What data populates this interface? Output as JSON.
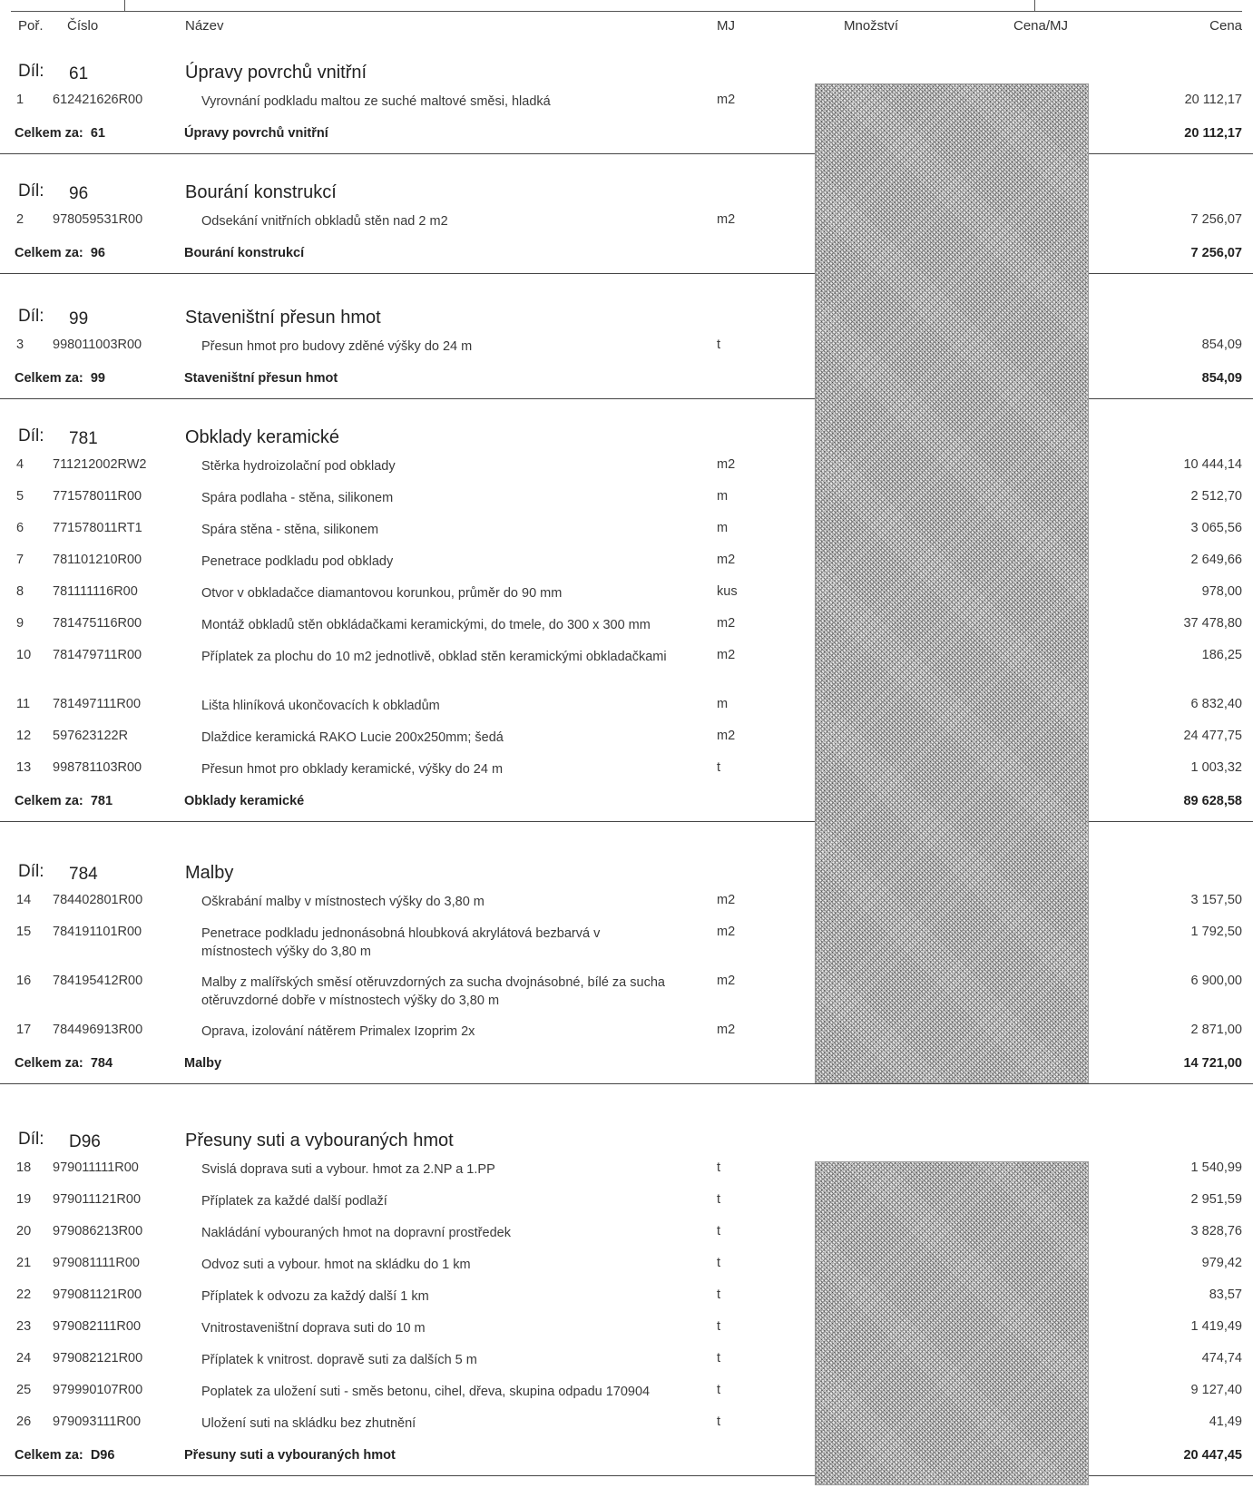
{
  "header": {
    "por": "Poř.",
    "cislo": "Číslo",
    "nazev": "Název",
    "mj": "MJ",
    "mnozstvi": "Množství",
    "cena_mj": "Cena/MJ",
    "cena": "Cena"
  },
  "dil_label": "Díl:",
  "total_label": "Celkem za:",
  "sections": [
    {
      "num": "61",
      "name": "Úpravy povrchů vnitřní",
      "total_name": "Úpravy povrchů vnitřní",
      "total": "20 112,17",
      "rows": [
        {
          "por": "1",
          "cislo": "612421626R00",
          "nazev": "Vyrovnání podkladu maltou ze suché maltové směsi, hladká",
          "mj": "m2",
          "cena": "20 112,17"
        }
      ]
    },
    {
      "num": "96",
      "name": "Bourání konstrukcí",
      "total_name": "Bourání konstrukcí",
      "total": "7 256,07",
      "rows": [
        {
          "por": "2",
          "cislo": "978059531R00",
          "nazev": "Odsekání vnitřních obkladů stěn nad 2 m2",
          "mj": "m2",
          "cena": "7 256,07"
        }
      ]
    },
    {
      "num": "99",
      "name": "Staveništní přesun hmot",
      "total_name": "Staveništní přesun hmot",
      "total": "854,09",
      "rows": [
        {
          "por": "3",
          "cislo": "998011003R00",
          "nazev": "Přesun hmot pro budovy zděné výšky do 24 m",
          "mj": "t",
          "cena": "854,09"
        }
      ]
    },
    {
      "num": "781",
      "name": "Obklady keramické",
      "total_name": "Obklady keramické",
      "total": "89 628,58",
      "rows": [
        {
          "por": "4",
          "cislo": "711212002RW2",
          "nazev": "Stěrka hydroizolační pod obklady",
          "mj": "m2",
          "cena": "10 444,14"
        },
        {
          "por": "5",
          "cislo": "771578011R00",
          "nazev": "Spára podlaha - stěna, silikonem",
          "mj": "m",
          "cena": "2 512,70"
        },
        {
          "por": "6",
          "cislo": "771578011RT1",
          "nazev": "Spára stěna - stěna, silikonem",
          "mj": "m",
          "cena": "3 065,56"
        },
        {
          "por": "7",
          "cislo": "781101210R00",
          "nazev": "Penetrace podkladu pod obklady",
          "mj": "m2",
          "cena": "2 649,66"
        },
        {
          "por": "8",
          "cislo": "781111116R00",
          "nazev": "Otvor v obkladačce diamantovou korunkou, průměr do 90 mm",
          "mj": "kus",
          "cena": "978,00"
        },
        {
          "por": "9",
          "cislo": "781475116R00",
          "nazev": "Montáž obkladů stěn obkládačkami keramickými, do tmele, do 300 x 300 mm",
          "mj": "m2",
          "cena": "37 478,80"
        },
        {
          "por": "10",
          "cislo": "781479711R00",
          "nazev": "Příplatek za plochu do 10 m2 jednotlivě, obklad stěn keramickými obkladačkami",
          "mj": "m2",
          "cena": "186,25",
          "tall": true
        },
        {
          "por": "11",
          "cislo": "781497111R00",
          "nazev": "Lišta hliníková ukončovacích k obkladům",
          "mj": "m",
          "cena": "6 832,40"
        },
        {
          "por": "12",
          "cislo": "597623122R",
          "nazev": "Dlaždice keramická RAKO Lucie 200x250mm; šedá",
          "mj": "m2",
          "cena": "24 477,75"
        },
        {
          "por": "13",
          "cislo": "998781103R00",
          "nazev": "Přesun hmot pro obklady keramické, výšky do 24 m",
          "mj": "t",
          "cena": "1 003,32"
        }
      ]
    },
    {
      "num": "784",
      "name": "Malby",
      "total_name": "Malby",
      "total": "14 721,00",
      "rows": [
        {
          "por": "14",
          "cislo": "784402801R00",
          "nazev": "Oškrabání malby v místnostech výšky do 3,80 m",
          "mj": "m2",
          "cena": "3 157,50"
        },
        {
          "por": "15",
          "cislo": "784191101R00",
          "nazev": "Penetrace podkladu jednonásobná hloubková akrylátová bezbarvá v místnostech výšky do 3,80 m",
          "mj": "m2",
          "cena": "1 792,50",
          "tall": true
        },
        {
          "por": "16",
          "cislo": "784195412R00",
          "nazev": "Malby z malířských směsí otěruvzdorných za sucha dvojnásobné, bílé za sucha otěruvzdorné dobře v místnostech výšky do 3,80 m",
          "mj": "m2",
          "cena": "6 900,00",
          "tall": true
        },
        {
          "por": "17",
          "cislo": "784496913R00",
          "nazev": "Oprava, izolování nátěrem Primalex Izoprim 2x",
          "mj": "m2",
          "cena": "2 871,00"
        }
      ]
    },
    {
      "num": "D96",
      "name": "Přesuny suti a vybouraných hmot",
      "total_name": "Přesuny suti a vybouraných hmot",
      "total": "20 447,45",
      "rows": [
        {
          "por": "18",
          "cislo": "979011111R00",
          "nazev": "Svislá doprava suti a vybour. hmot za 2.NP a 1.PP",
          "mj": "t",
          "cena": "1 540,99"
        },
        {
          "por": "19",
          "cislo": "979011121R00",
          "nazev": "Příplatek za každé další podlaží",
          "mj": "t",
          "cena": "2 951,59"
        },
        {
          "por": "20",
          "cislo": "979086213R00",
          "nazev": "Nakládání vybouraných hmot na dopravní prostředek",
          "mj": "t",
          "cena": "3 828,76"
        },
        {
          "por": "21",
          "cislo": "979081111R00",
          "nazev": "Odvoz suti a vybour. hmot na skládku do 1 km",
          "mj": "t",
          "cena": "979,42"
        },
        {
          "por": "22",
          "cislo": "979081121R00",
          "nazev": "Příplatek k odvozu za každý další 1 km",
          "mj": "t",
          "cena": "83,57"
        },
        {
          "por": "23",
          "cislo": "979082111R00",
          "nazev": "Vnitrostaveništní doprava suti do 10 m",
          "mj": "t",
          "cena": "1 419,49"
        },
        {
          "por": "24",
          "cislo": "979082121R00",
          "nazev": "Příplatek k vnitrost. dopravě suti za dalších 5 m",
          "mj": "t",
          "cena": "474,74"
        },
        {
          "por": "25",
          "cislo": "979990107R00",
          "nazev": "Poplatek za uložení suti - směs betonu, cihel, dřeva, skupina odpadu 170904",
          "mj": "t",
          "cena": "9 127,40"
        },
        {
          "por": "26",
          "cislo": "979093111R00",
          "nazev": "Uložení suti na skládku bez zhutnění",
          "mj": "t",
          "cena": "41,49"
        }
      ]
    }
  ]
}
